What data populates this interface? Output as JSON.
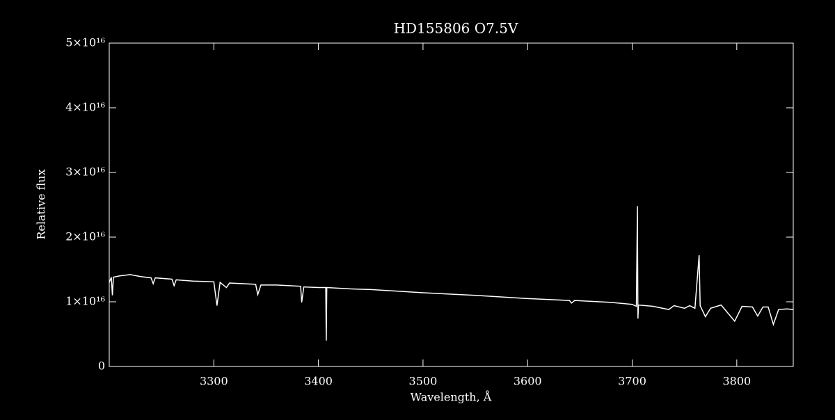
{
  "chart_data": {
    "type": "line",
    "title": "HD155806   O7.5V",
    "xlabel": "Wavelength, Å",
    "ylabel": "Relative flux",
    "color": "#ffffff",
    "x": [
      3200,
      3202,
      3203,
      3204,
      3210,
      3220,
      3230,
      3240,
      3242,
      3244,
      3260,
      3262,
      3264,
      3280,
      3300,
      3303,
      3306,
      3312,
      3315,
      3340,
      3342,
      3345,
      3360,
      3383,
      3384,
      3386,
      3400,
      3407,
      3407.5,
      3408,
      3430,
      3450,
      3480,
      3500,
      3550,
      3600,
      3640,
      3642,
      3645,
      3680,
      3700,
      3704,
      3705,
      3705.5,
      3706,
      3720,
      3735,
      3740,
      3750,
      3755,
      3760,
      3764,
      3765,
      3770,
      3775,
      3785,
      3798,
      3805,
      3815,
      3820,
      3825,
      3830,
      3835,
      3840,
      3848,
      3854
    ],
    "values": [
      1.3e+16,
      1.38e+16,
      1.1e+16,
      1.38e+16,
      1.4e+16,
      1.42e+16,
      1.39e+16,
      1.37e+16,
      1.28e+16,
      1.37e+16,
      1.35e+16,
      1.25e+16,
      1.34e+16,
      1.32e+16,
      1.31e+16,
      9400000000000000.0,
      1.3e+16,
      1.22e+16,
      1.29e+16,
      1.27e+16,
      1.11e+16,
      1.26e+16,
      1.26e+16,
      1.24e+16,
      9900000000000000.0,
      1.23e+16,
      1.22e+16,
      1.22e+16,
      4000000000000000.0,
      1.22e+16,
      1.2e+16,
      1.19e+16,
      1.16e+16,
      1.14e+16,
      1.1e+16,
      1.05e+16,
      1.02e+16,
      9800000000000000.0,
      1.02e+16,
      9900000000000000.0,
      9600000000000000.0,
      9300000000000000.0,
      2.48e+16,
      7400000000000000.0,
      9500000000000000.0,
      9300000000000000.0,
      8800000000000000.0,
      9400000000000000.0,
      9000000000000000.0,
      9400000000000000.0,
      9000000000000000.0,
      1.72e+16,
      9400000000000000.0,
      7700000000000000.0,
      9000000000000000.0,
      9500000000000000.0,
      7000000000000000.0,
      9300000000000000.0,
      9200000000000000.0,
      7800000000000000.0,
      9200000000000000.0,
      9200000000000000.0,
      6500000000000000.0,
      8800000000000000.0,
      8900000000000000.0,
      8800000000000000.0
    ],
    "xlim": [
      3200,
      3854
    ],
    "xticks": [
      3300,
      3400,
      3500,
      3600,
      3700,
      3800
    ],
    "ylim": [
      0,
      5e+16
    ],
    "yticks": [
      0,
      {
        "value": 1e+16,
        "label": "1×10¹⁶"
      },
      {
        "value": 2e+16,
        "label": "2×10¹⁶"
      },
      {
        "value": 3e+16,
        "label": "3×10¹⁶"
      },
      {
        "value": 4e+16,
        "label": "4×10¹⁶"
      },
      {
        "value": 5e+16,
        "label": "5×10¹⁶"
      }
    ]
  }
}
